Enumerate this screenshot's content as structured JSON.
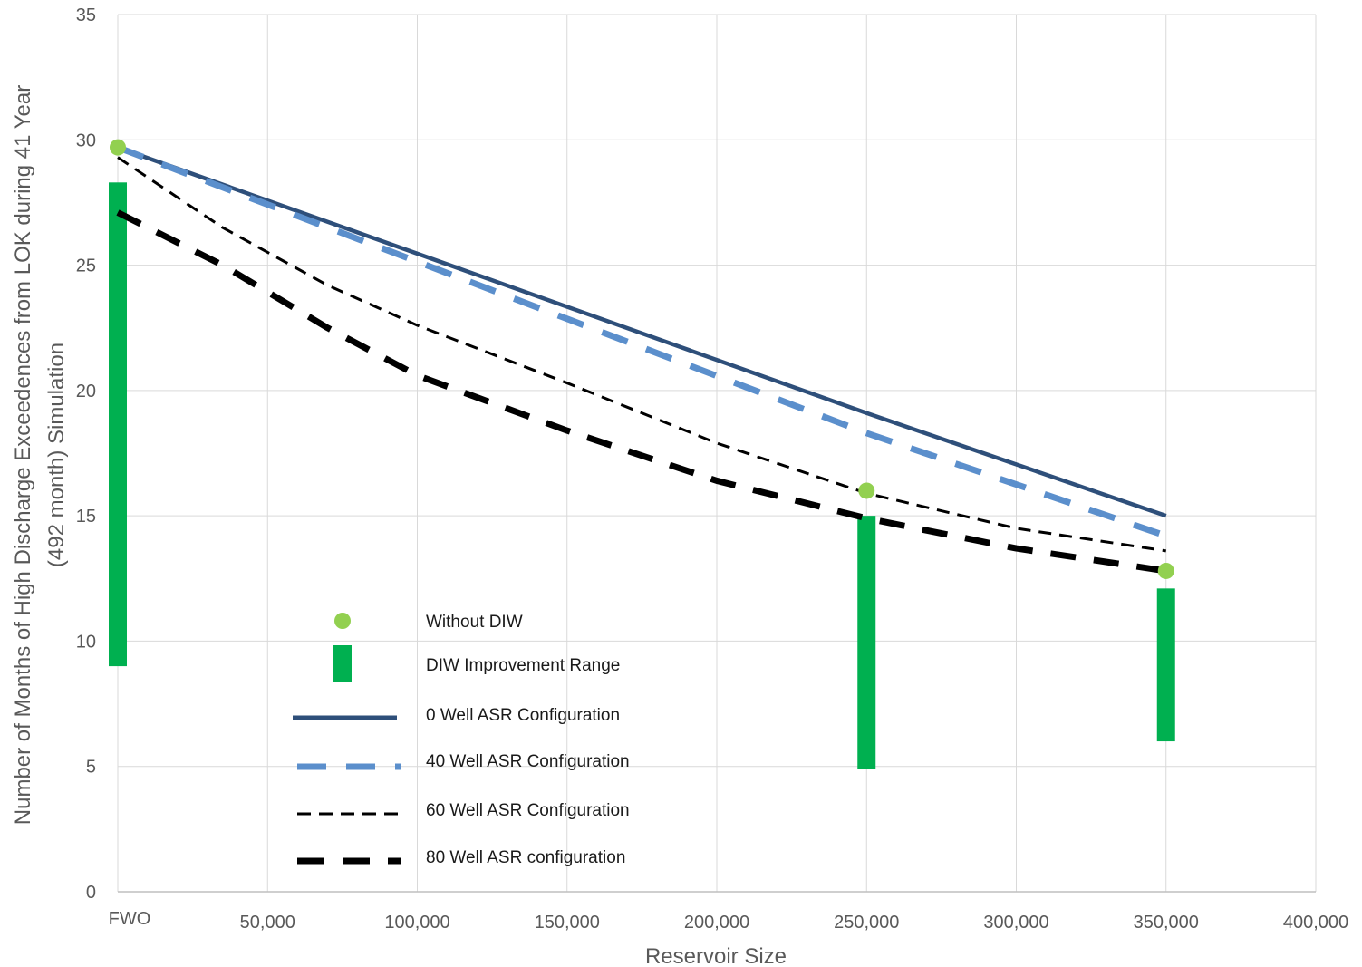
{
  "chart_data": {
    "type": "line",
    "xlabel": "Reservoir Size",
    "ylabel_line1": "Number of Months of High Discharge Exceedences from LOK during 41 Year",
    "ylabel_line2": "(492 month) Simulation",
    "xlim": [
      0,
      400000
    ],
    "ylim": [
      0,
      35
    ],
    "x_ticks": [
      {
        "value": 0,
        "label": "FWO"
      },
      {
        "value": 50000,
        "label": "50,000"
      },
      {
        "value": 100000,
        "label": "100,000"
      },
      {
        "value": 150000,
        "label": "150,000"
      },
      {
        "value": 200000,
        "label": "200,000"
      },
      {
        "value": 250000,
        "label": "250,000"
      },
      {
        "value": 300000,
        "label": "300,000"
      },
      {
        "value": 350000,
        "label": "350,000"
      },
      {
        "value": 400000,
        "label": "400,000"
      }
    ],
    "y_ticks": [
      {
        "value": 0,
        "label": "0"
      },
      {
        "value": 5,
        "label": "5"
      },
      {
        "value": 10,
        "label": "10"
      },
      {
        "value": 15,
        "label": "15"
      },
      {
        "value": 20,
        "label": "20"
      },
      {
        "value": 25,
        "label": "25"
      },
      {
        "value": 30,
        "label": "30"
      },
      {
        "value": 35,
        "label": "35"
      }
    ],
    "grid": true,
    "legend_position": "lower-left inside plot",
    "series": [
      {
        "name": "0 Well ASR Configuration",
        "style": "solid",
        "color": "#2e4f7a",
        "points": [
          [
            0,
            29.7
          ],
          [
            250000,
            19.1
          ],
          [
            350000,
            15.0
          ]
        ]
      },
      {
        "name": "40 Well ASR Configuration",
        "style": "dashed-long",
        "color": "#5b8fcc",
        "points": [
          [
            0,
            29.7
          ],
          [
            250000,
            18.3
          ],
          [
            350000,
            14.2
          ]
        ]
      },
      {
        "name": "60 Well ASR Configuration",
        "style": "dashed-thin",
        "color": "#000000",
        "points": [
          [
            0,
            29.3
          ],
          [
            35000,
            26.5
          ],
          [
            70000,
            24.2
          ],
          [
            100000,
            22.6
          ],
          [
            150000,
            20.3
          ],
          [
            200000,
            17.9
          ],
          [
            250000,
            15.9
          ],
          [
            300000,
            14.5
          ],
          [
            350000,
            13.6
          ]
        ]
      },
      {
        "name": "80 Well ASR configuration",
        "style": "dashed-thick",
        "color": "#000000",
        "points": [
          [
            0,
            27.1
          ],
          [
            35000,
            25.0
          ],
          [
            70000,
            22.5
          ],
          [
            100000,
            20.6
          ],
          [
            150000,
            18.4
          ],
          [
            200000,
            16.4
          ],
          [
            250000,
            14.9
          ],
          [
            300000,
            13.7
          ],
          [
            350000,
            12.8
          ]
        ]
      }
    ],
    "without_diw": {
      "name": "Without DIW",
      "color": "#92d050",
      "points": [
        [
          0,
          29.7
        ],
        [
          250000,
          16.0
        ],
        [
          350000,
          12.8
        ]
      ]
    },
    "diw_range": {
      "name": "DIW Improvement Range",
      "color": "#00b050",
      "bars": [
        [
          0,
          9.0,
          28.3
        ],
        [
          250000,
          4.9,
          15.0
        ],
        [
          350000,
          6.0,
          12.1
        ]
      ]
    },
    "legend_entries": [
      {
        "label": "Without DIW",
        "key": "without_diw"
      },
      {
        "label": "DIW Improvement Range",
        "key": "diw_range"
      },
      {
        "label": "0 Well ASR Configuration",
        "key": "s0"
      },
      {
        "label": "40 Well ASR Configuration",
        "key": "s1"
      },
      {
        "label": "60 Well ASR Configuration",
        "key": "s2"
      },
      {
        "label": "80 Well ASR configuration",
        "key": "s3"
      }
    ]
  }
}
